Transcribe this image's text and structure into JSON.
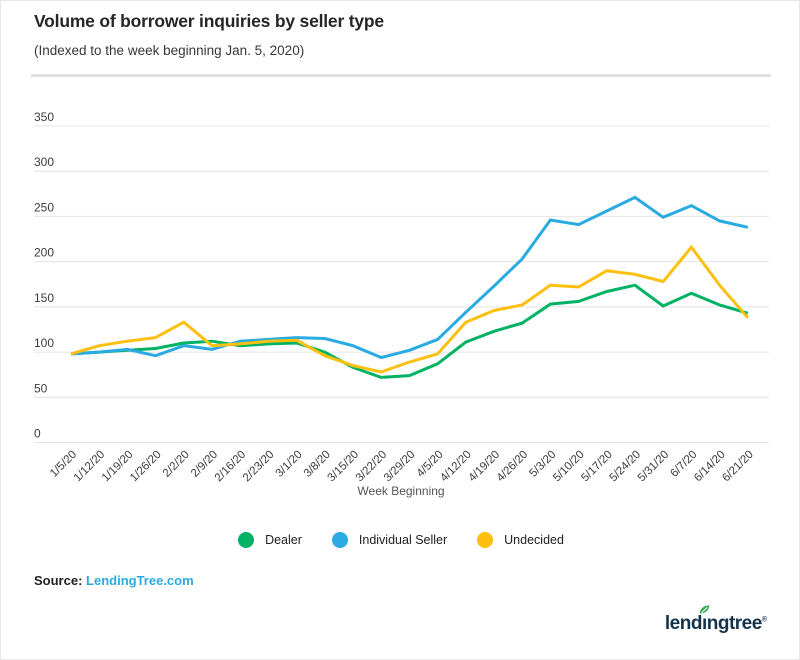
{
  "header": {
    "title": "Volume of borrower inquiries by seller type",
    "subtitle": "(Indexed to the week beginning Jan. 5, 2020)"
  },
  "chart_data": {
    "type": "line",
    "title": "Volume of borrower inquiries by seller type",
    "xlabel": "Week Beginning",
    "ylabel": "",
    "ylim": [
      0,
      350
    ],
    "ytick_step": 50,
    "grid": true,
    "legend_position": "bottom",
    "categories": [
      "1/5/20",
      "1/12/20",
      "1/19/20",
      "1/26/20",
      "2/2/20",
      "2/9/20",
      "2/16/20",
      "2/23/20",
      "3/1/20",
      "3/8/20",
      "3/15/20",
      "3/22/20",
      "3/29/20",
      "4/5/20",
      "4/12/20",
      "4/19/20",
      "4/26/20",
      "5/3/20",
      "5/10/20",
      "5/17/20",
      "5/24/20",
      "5/31/20",
      "6/7/20",
      "6/14/20",
      "6/21/20"
    ],
    "series": [
      {
        "name": "Dealer",
        "color": "#00b264",
        "values": [
          98,
          100,
          102,
          104,
          110,
          112,
          107,
          109,
          110,
          100,
          83,
          72,
          74,
          87,
          111,
          123,
          132,
          153,
          156,
          167,
          174,
          151,
          165,
          152,
          143
        ]
      },
      {
        "name": "Individual Seller",
        "color": "#29abe2",
        "values": [
          98,
          100,
          103,
          96,
          107,
          103,
          112,
          114,
          116,
          115,
          107,
          94,
          102,
          114,
          144,
          173,
          203,
          246,
          241,
          256,
          271,
          249,
          262,
          245,
          238
        ]
      },
      {
        "name": "Undecided",
        "color": "#fdc010",
        "values": [
          98,
          107,
          112,
          116,
          133,
          107,
          109,
          112,
          113,
          96,
          85,
          78,
          89,
          98,
          133,
          146,
          152,
          174,
          172,
          190,
          186,
          178,
          216,
          174,
          138
        ]
      }
    ]
  },
  "source": {
    "label": "Source:",
    "link_text": "LendingTree.com",
    "link_color": "#29abe2"
  },
  "logo": {
    "part1": "lend",
    "part2": "ı",
    "part3": "ngtree",
    "mark": "®",
    "leaf_color": "#2ea84d",
    "text_color": "#14334a"
  }
}
